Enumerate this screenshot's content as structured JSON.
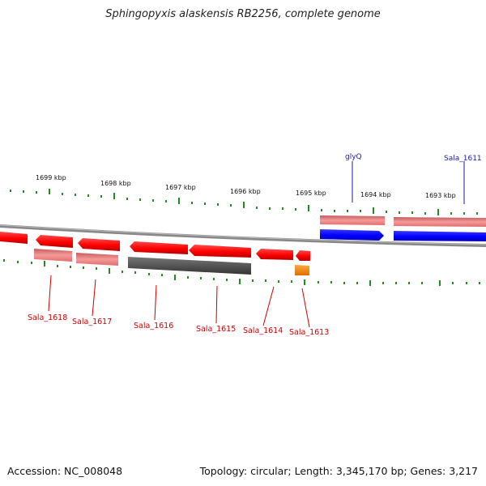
{
  "title": "Sphingopyxis alaskensis RB2256, complete genome",
  "footer": {
    "accession": "Accession: NC_008048",
    "summary": "Topology: circular; Length: 3,345,170 bp; Genes: 3,217"
  },
  "scale_labels": [
    "1699 kbp",
    "1698 kbp",
    "1697 kbp",
    "1696 kbp",
    "1695 kbp",
    "1694 kbp",
    "1693 kbp"
  ],
  "genes": {
    "forward": [
      "glyQ",
      "Sala_1611"
    ],
    "reverse": [
      "Sala_1618",
      "Sala_1617",
      "Sala_1616",
      "Sala_1615",
      "Sala_1614",
      "Sala_1613"
    ]
  },
  "colors": {
    "forward_label": "#1a1aa6",
    "reverse_label": "#cc0000",
    "cds": "#ff0000",
    "cds_light": "#f08080",
    "cds_blue": "#0000ff",
    "pseudo": "#555555",
    "rna": "#ff8c00",
    "scale_ticks": "#008000",
    "backbone": "#888888"
  }
}
